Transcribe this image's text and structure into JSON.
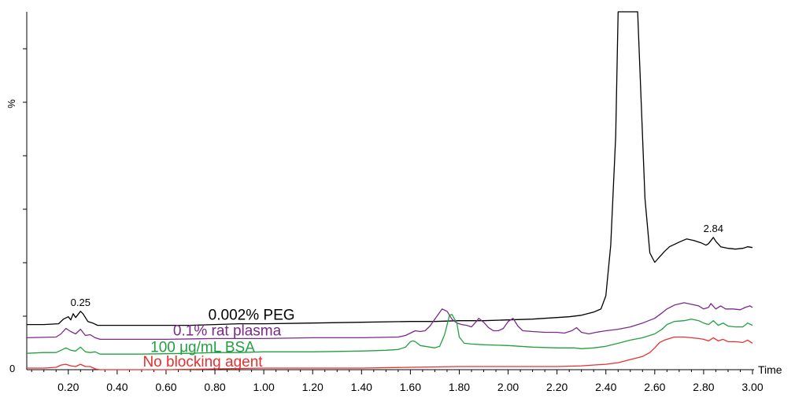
{
  "chart_data": {
    "type": "line",
    "xlabel": "Time",
    "ylabel": "%",
    "ylim_ticks": {
      "zero_label": "0"
    },
    "xlim": [
      0.03,
      3.0
    ],
    "xticks": [
      {
        "value": 0.2,
        "label": "0.20"
      },
      {
        "value": 0.4,
        "label": "0.40"
      },
      {
        "value": 0.6,
        "label": "0.60"
      },
      {
        "value": 0.8,
        "label": "0.80"
      },
      {
        "value": 1.0,
        "label": "1.00"
      },
      {
        "value": 1.2,
        "label": "1.20"
      },
      {
        "value": 1.4,
        "label": "1.40"
      },
      {
        "value": 1.6,
        "label": "1.60"
      },
      {
        "value": 1.8,
        "label": "1.80"
      },
      {
        "value": 2.0,
        "label": "2.00"
      },
      {
        "value": 2.2,
        "label": "2.20"
      },
      {
        "value": 2.4,
        "label": "2.40"
      },
      {
        "value": 2.6,
        "label": "2.60"
      },
      {
        "value": 2.8,
        "label": "2.80"
      },
      {
        "value": 3.0,
        "label": "3.00"
      }
    ],
    "series": [
      {
        "name": "0.002% PEG",
        "color": "#000000",
        "points": [
          [
            0.03,
            58
          ],
          [
            0.1,
            58
          ],
          [
            0.16,
            59
          ],
          [
            0.18,
            65
          ],
          [
            0.2,
            68
          ],
          [
            0.21,
            64
          ],
          [
            0.22,
            72
          ],
          [
            0.23,
            67
          ],
          [
            0.25,
            75
          ],
          [
            0.26,
            72
          ],
          [
            0.28,
            62
          ],
          [
            0.3,
            60
          ],
          [
            0.32,
            57
          ],
          [
            0.5,
            57
          ],
          [
            0.7,
            57
          ],
          [
            0.8,
            58
          ],
          [
            0.9,
            59
          ],
          [
            1.0,
            59
          ],
          [
            1.2,
            60
          ],
          [
            1.4,
            61
          ],
          [
            1.6,
            62
          ],
          [
            1.7,
            62
          ],
          [
            1.8,
            63
          ],
          [
            1.9,
            63
          ],
          [
            2.0,
            64
          ],
          [
            2.1,
            65
          ],
          [
            2.2,
            67
          ],
          [
            2.25,
            68
          ],
          [
            2.3,
            70
          ],
          [
            2.35,
            74
          ],
          [
            2.38,
            78
          ],
          [
            2.4,
            95
          ],
          [
            2.42,
            160
          ],
          [
            2.44,
            300
          ],
          [
            2.45,
            460
          ],
          [
            2.53,
            460
          ],
          [
            2.54,
            380
          ],
          [
            2.56,
            220
          ],
          [
            2.58,
            150
          ],
          [
            2.6,
            138
          ],
          [
            2.62,
            145
          ],
          [
            2.64,
            152
          ],
          [
            2.66,
            158
          ],
          [
            2.7,
            164
          ],
          [
            2.73,
            168
          ],
          [
            2.76,
            166
          ],
          [
            2.79,
            163
          ],
          [
            2.81,
            160
          ],
          [
            2.82,
            162
          ],
          [
            2.84,
            170
          ],
          [
            2.85,
            165
          ],
          [
            2.87,
            158
          ],
          [
            2.9,
            156
          ],
          [
            2.93,
            155
          ],
          [
            2.96,
            156
          ],
          [
            2.98,
            158
          ],
          [
            3.0,
            157
          ]
        ]
      },
      {
        "name": "0.1% rat plasma",
        "color": "#7b2a8a",
        "points": [
          [
            0.03,
            41
          ],
          [
            0.15,
            42
          ],
          [
            0.17,
            46
          ],
          [
            0.19,
            53
          ],
          [
            0.21,
            49
          ],
          [
            0.23,
            46
          ],
          [
            0.25,
            52
          ],
          [
            0.27,
            44
          ],
          [
            0.29,
            45
          ],
          [
            0.31,
            41
          ],
          [
            0.33,
            39
          ],
          [
            0.6,
            39
          ],
          [
            0.8,
            40
          ],
          [
            1.0,
            40
          ],
          [
            1.2,
            41
          ],
          [
            1.4,
            41
          ],
          [
            1.55,
            42
          ],
          [
            1.58,
            44
          ],
          [
            1.6,
            47
          ],
          [
            1.62,
            50
          ],
          [
            1.64,
            49
          ],
          [
            1.66,
            50
          ],
          [
            1.68,
            56
          ],
          [
            1.7,
            65
          ],
          [
            1.73,
            78
          ],
          [
            1.75,
            75
          ],
          [
            1.77,
            65
          ],
          [
            1.79,
            60
          ],
          [
            1.81,
            58
          ],
          [
            1.83,
            57
          ],
          [
            1.85,
            55
          ],
          [
            1.87,
            62
          ],
          [
            1.88,
            66
          ],
          [
            1.9,
            61
          ],
          [
            1.92,
            54
          ],
          [
            1.94,
            50
          ],
          [
            1.96,
            50
          ],
          [
            1.98,
            53
          ],
          [
            2.0,
            62
          ],
          [
            2.02,
            66
          ],
          [
            2.04,
            56
          ],
          [
            2.06,
            50
          ],
          [
            2.1,
            49
          ],
          [
            2.15,
            48
          ],
          [
            2.2,
            48
          ],
          [
            2.23,
            47
          ],
          [
            2.26,
            50
          ],
          [
            2.28,
            54
          ],
          [
            2.3,
            48
          ],
          [
            2.33,
            46
          ],
          [
            2.36,
            48
          ],
          [
            2.4,
            50
          ],
          [
            2.45,
            52
          ],
          [
            2.5,
            55
          ],
          [
            2.55,
            60
          ],
          [
            2.6,
            66
          ],
          [
            2.63,
            73
          ],
          [
            2.65,
            78
          ],
          [
            2.68,
            83
          ],
          [
            2.72,
            86
          ],
          [
            2.75,
            84
          ],
          [
            2.78,
            82
          ],
          [
            2.8,
            78
          ],
          [
            2.82,
            80
          ],
          [
            2.83,
            85
          ],
          [
            2.85,
            78
          ],
          [
            2.87,
            82
          ],
          [
            2.89,
            78
          ],
          [
            2.92,
            78
          ],
          [
            2.95,
            77
          ],
          [
            2.97,
            80
          ],
          [
            2.99,
            82
          ],
          [
            3.0,
            80
          ]
        ]
      },
      {
        "name": "100 μg/mL BSA",
        "color": "#22a040",
        "points": [
          [
            0.03,
            21
          ],
          [
            0.1,
            22
          ],
          [
            0.15,
            22
          ],
          [
            0.17,
            25
          ],
          [
            0.19,
            28
          ],
          [
            0.21,
            25
          ],
          [
            0.23,
            24
          ],
          [
            0.25,
            29
          ],
          [
            0.27,
            23
          ],
          [
            0.29,
            22
          ],
          [
            0.31,
            23
          ],
          [
            0.33,
            20
          ],
          [
            0.5,
            20
          ],
          [
            0.7,
            21
          ],
          [
            0.8,
            22
          ],
          [
            0.9,
            22
          ],
          [
            1.0,
            23
          ],
          [
            1.2,
            23
          ],
          [
            1.4,
            24
          ],
          [
            1.5,
            25
          ],
          [
            1.55,
            26
          ],
          [
            1.58,
            29
          ],
          [
            1.6,
            36
          ],
          [
            1.61,
            37
          ],
          [
            1.62,
            36
          ],
          [
            1.64,
            31
          ],
          [
            1.66,
            30
          ],
          [
            1.68,
            29
          ],
          [
            1.7,
            28
          ],
          [
            1.72,
            30
          ],
          [
            1.74,
            45
          ],
          [
            1.76,
            70
          ],
          [
            1.77,
            71
          ],
          [
            1.79,
            60
          ],
          [
            1.8,
            42
          ],
          [
            1.82,
            34
          ],
          [
            1.85,
            33
          ],
          [
            1.9,
            32
          ],
          [
            2.0,
            31
          ],
          [
            2.1,
            29
          ],
          [
            2.2,
            28
          ],
          [
            2.27,
            28
          ],
          [
            2.3,
            27
          ],
          [
            2.35,
            28
          ],
          [
            2.4,
            30
          ],
          [
            2.45,
            34
          ],
          [
            2.5,
            38
          ],
          [
            2.55,
            41
          ],
          [
            2.6,
            46
          ],
          [
            2.63,
            52
          ],
          [
            2.65,
            58
          ],
          [
            2.68,
            62
          ],
          [
            2.72,
            63
          ],
          [
            2.75,
            65
          ],
          [
            2.78,
            63
          ],
          [
            2.8,
            60
          ],
          [
            2.82,
            58
          ],
          [
            2.84,
            63
          ],
          [
            2.86,
            57
          ],
          [
            2.88,
            60
          ],
          [
            2.9,
            56
          ],
          [
            2.93,
            55
          ],
          [
            2.96,
            55
          ],
          [
            2.98,
            60
          ],
          [
            3.0,
            57
          ]
        ]
      },
      {
        "name": "No blocking  agent",
        "color": "#e8302e",
        "points": [
          [
            0.03,
            2
          ],
          [
            0.1,
            2
          ],
          [
            0.15,
            3
          ],
          [
            0.17,
            6
          ],
          [
            0.19,
            7
          ],
          [
            0.21,
            5
          ],
          [
            0.23,
            4
          ],
          [
            0.25,
            7
          ],
          [
            0.27,
            4
          ],
          [
            0.29,
            4
          ],
          [
            0.31,
            1
          ],
          [
            0.33,
            0
          ],
          [
            0.6,
            0
          ],
          [
            0.8,
            1
          ],
          [
            1.0,
            2
          ],
          [
            1.2,
            2
          ],
          [
            1.4,
            2
          ],
          [
            1.6,
            3
          ],
          [
            1.8,
            4
          ],
          [
            2.0,
            4
          ],
          [
            2.2,
            4
          ],
          [
            2.3,
            5
          ],
          [
            2.4,
            7
          ],
          [
            2.45,
            9
          ],
          [
            2.5,
            13
          ],
          [
            2.55,
            17
          ],
          [
            2.58,
            22
          ],
          [
            2.6,
            28
          ],
          [
            2.62,
            35
          ],
          [
            2.64,
            38
          ],
          [
            2.66,
            40
          ],
          [
            2.68,
            42
          ],
          [
            2.7,
            42
          ],
          [
            2.72,
            42
          ],
          [
            2.75,
            41
          ],
          [
            2.78,
            40
          ],
          [
            2.8,
            39
          ],
          [
            2.82,
            37
          ],
          [
            2.84,
            41
          ],
          [
            2.86,
            37
          ],
          [
            2.88,
            39
          ],
          [
            2.9,
            36
          ],
          [
            2.93,
            36
          ],
          [
            2.96,
            35
          ],
          [
            2.98,
            38
          ],
          [
            3.0,
            34
          ]
        ]
      }
    ],
    "annotations": [
      {
        "text": "0.25",
        "x": 0.25,
        "y": 75
      },
      {
        "text": "2.84",
        "x": 2.84,
        "y": 170
      }
    ],
    "series_labels": [
      {
        "series": 0,
        "x": 0.95,
        "y": 64
      },
      {
        "series": 1,
        "x": 0.85,
        "y": 44
      },
      {
        "series": 2,
        "x": 0.75,
        "y": 23
      },
      {
        "series": 3,
        "x": 0.75,
        "y": 4
      }
    ]
  }
}
